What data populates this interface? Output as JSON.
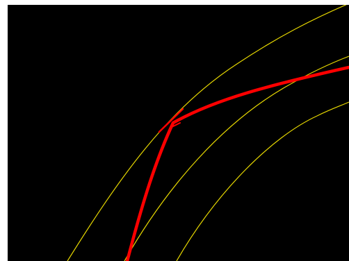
{
  "colors": {
    "background": "#000000",
    "frame": "#ffffff",
    "guide_curve": "#e6d700",
    "highlight_path": "#ff0000"
  },
  "elements": {
    "guide_curves": [
      "outer-curve",
      "middle-curve",
      "inner-curve"
    ],
    "highlight_paths": [
      "main-red-path",
      "tick-mark"
    ]
  }
}
